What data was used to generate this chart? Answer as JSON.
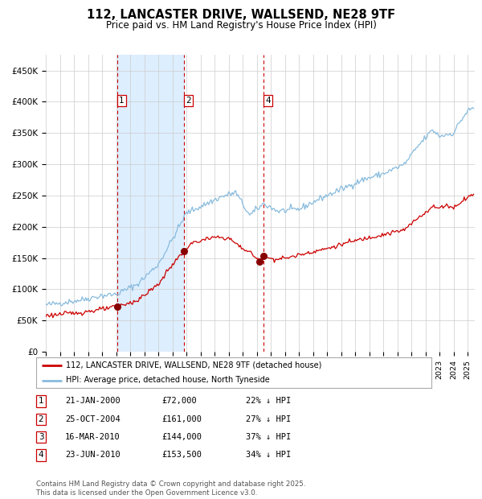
{
  "title": "112, LANCASTER DRIVE, WALLSEND, NE28 9TF",
  "subtitle": "Price paid vs. HM Land Registry's House Price Index (HPI)",
  "background_color": "#ffffff",
  "plot_bg_color": "#ffffff",
  "grid_color": "#cccccc",
  "hpi_line_color": "#88bbdd",
  "price_line_color": "#cc0000",
  "sale_marker_color": "#880000",
  "shade_color": "#ddeeff",
  "dashed_line_color": "#cc0000",
  "legend_label_price": "112, LANCASTER DRIVE, WALLSEND, NE28 9TF (detached house)",
  "legend_label_hpi": "HPI: Average price, detached house, North Tyneside",
  "transactions": [
    {
      "num": 1,
      "date_f": 2000.07,
      "price": 72000,
      "pct": "22% ↓ HPI",
      "date_str": "21-JAN-2000",
      "price_str": "£72,000",
      "show_label": true
    },
    {
      "num": 2,
      "date_f": 2004.82,
      "price": 161000,
      "pct": "27% ↓ HPI",
      "date_str": "25-OCT-2004",
      "price_str": "£161,000",
      "show_label": true
    },
    {
      "num": 3,
      "date_f": 2010.21,
      "price": 144000,
      "pct": "37% ↓ HPI",
      "date_str": "16-MAR-2010",
      "price_str": "£144,000",
      "show_label": false
    },
    {
      "num": 4,
      "date_f": 2010.48,
      "price": 153500,
      "pct": "34% ↓ HPI",
      "date_str": "23-JUN-2010",
      "price_str": "£153,500",
      "show_label": true
    }
  ],
  "shade_x1": 2000.07,
  "shade_x2": 2004.82,
  "ylim": [
    0,
    475000
  ],
  "yticks": [
    0,
    50000,
    100000,
    150000,
    200000,
    250000,
    300000,
    350000,
    400000,
    450000
  ],
  "ytick_labels": [
    "£0",
    "£50K",
    "£100K",
    "£150K",
    "£200K",
    "£250K",
    "£300K",
    "£350K",
    "£400K",
    "£450K"
  ],
  "footer": "Contains HM Land Registry data © Crown copyright and database right 2025.\nThis data is licensed under the Open Government Licence v3.0.",
  "xlim_start": 1995.0,
  "xlim_end": 2025.5,
  "hpi_anchors": [
    [
      1995.0,
      75000
    ],
    [
      1996.0,
      78000
    ],
    [
      1997.5,
      83000
    ],
    [
      1999.0,
      90000
    ],
    [
      2000.0,
      92000
    ],
    [
      2001.5,
      108000
    ],
    [
      2003.0,
      140000
    ],
    [
      2004.0,
      180000
    ],
    [
      2005.0,
      222000
    ],
    [
      2007.5,
      248000
    ],
    [
      2008.5,
      255000
    ],
    [
      2009.5,
      218000
    ],
    [
      2010.0,
      228000
    ],
    [
      2010.5,
      237000
    ],
    [
      2011.5,
      225000
    ],
    [
      2013.0,
      228000
    ],
    [
      2014.5,
      245000
    ],
    [
      2016.0,
      260000
    ],
    [
      2017.5,
      275000
    ],
    [
      2019.0,
      285000
    ],
    [
      2020.5,
      300000
    ],
    [
      2021.5,
      330000
    ],
    [
      2022.5,
      355000
    ],
    [
      2023.0,
      345000
    ],
    [
      2024.0,
      350000
    ],
    [
      2024.5,
      370000
    ],
    [
      2025.0,
      385000
    ],
    [
      2025.4,
      390000
    ]
  ],
  "price_anchors": [
    [
      1995.0,
      58000
    ],
    [
      1996.0,
      60000
    ],
    [
      1997.5,
      63000
    ],
    [
      1999.0,
      68000
    ],
    [
      2000.07,
      72000
    ],
    [
      2001.5,
      82000
    ],
    [
      2003.0,
      108000
    ],
    [
      2004.0,
      140000
    ],
    [
      2004.82,
      161000
    ],
    [
      2005.5,
      175000
    ],
    [
      2007.0,
      183000
    ],
    [
      2008.0,
      182000
    ],
    [
      2009.0,
      165000
    ],
    [
      2009.5,
      160000
    ],
    [
      2010.21,
      144000
    ],
    [
      2010.48,
      153500
    ],
    [
      2010.8,
      150000
    ],
    [
      2011.5,
      148000
    ],
    [
      2012.5,
      152000
    ],
    [
      2013.5,
      158000
    ],
    [
      2015.0,
      165000
    ],
    [
      2016.5,
      175000
    ],
    [
      2018.0,
      183000
    ],
    [
      2019.5,
      190000
    ],
    [
      2020.5,
      195000
    ],
    [
      2021.5,
      215000
    ],
    [
      2022.5,
      232000
    ],
    [
      2023.0,
      230000
    ],
    [
      2023.5,
      235000
    ],
    [
      2024.0,
      230000
    ],
    [
      2024.5,
      240000
    ],
    [
      2025.0,
      248000
    ],
    [
      2025.4,
      252000
    ]
  ]
}
